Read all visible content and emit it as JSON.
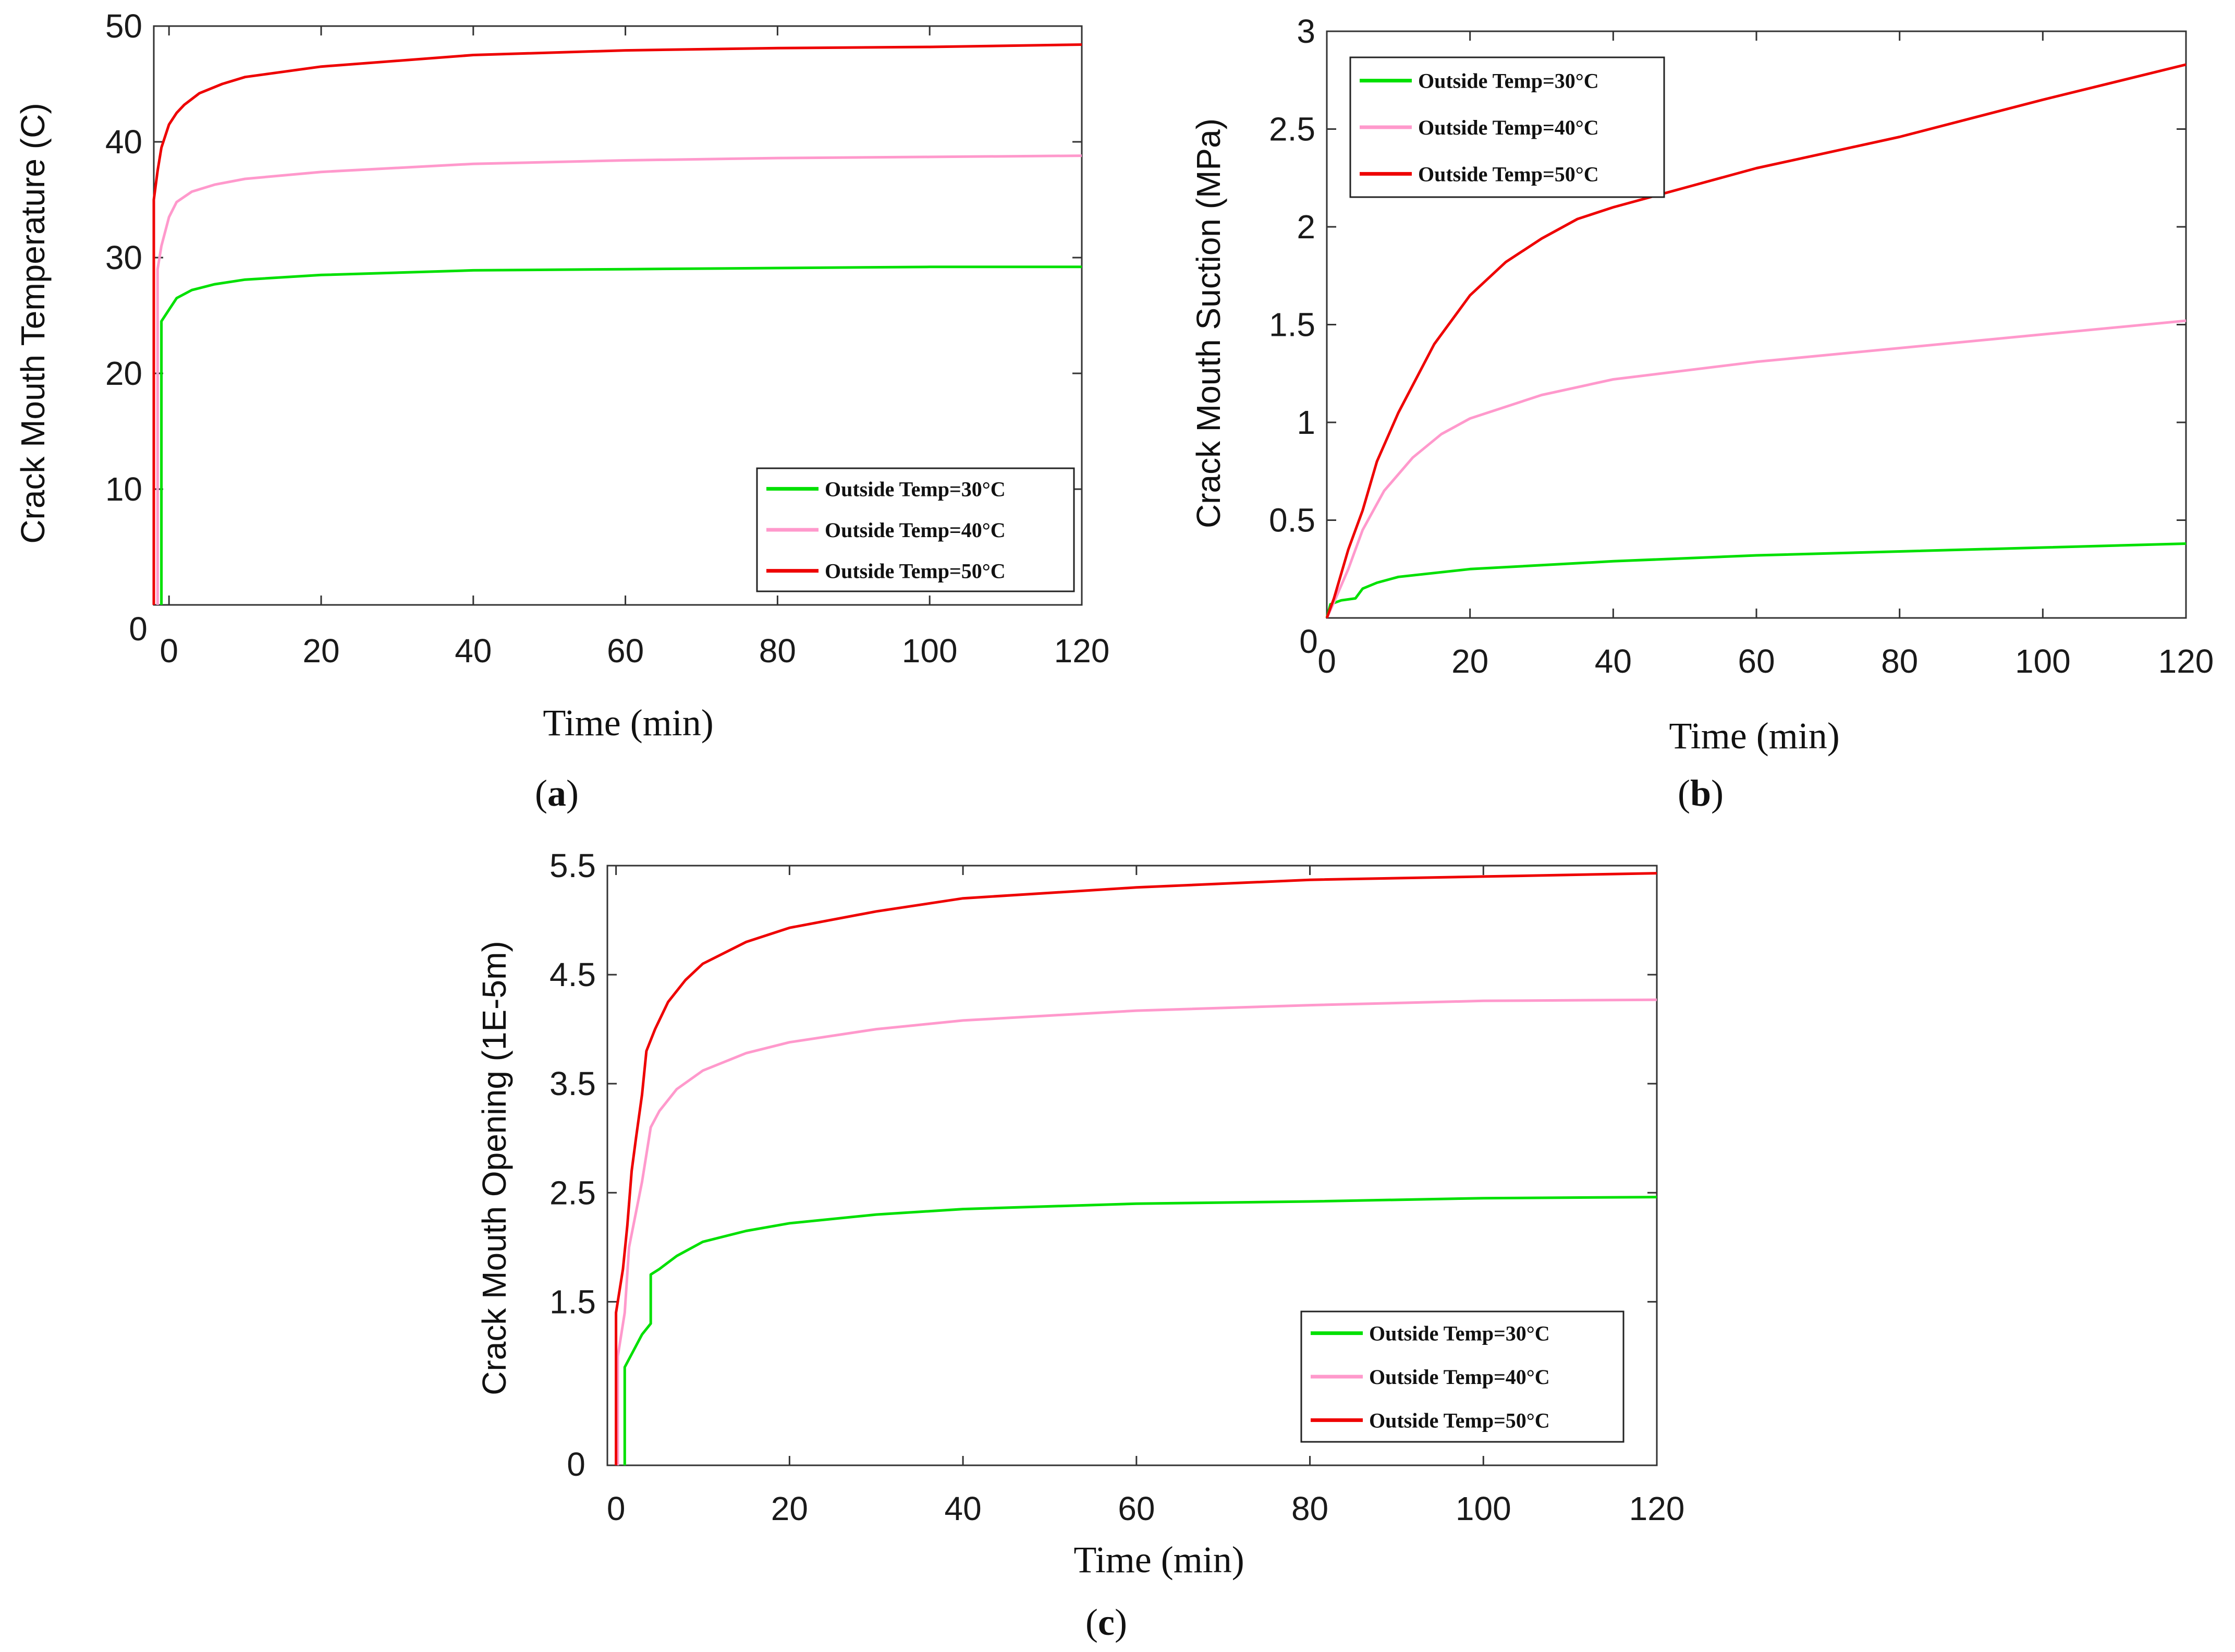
{
  "chart_data": [
    {
      "id": "a",
      "type": "line",
      "caption_letter": "a",
      "xlabel": "Time (min)",
      "ylabel": "Crack Mouth Temperature (C)",
      "xlim": [
        -2,
        120
      ],
      "ylim": [
        0,
        50
      ],
      "xticks": [
        0,
        20,
        40,
        60,
        80,
        100,
        120
      ],
      "yticks": [
        10,
        20,
        30,
        40,
        50
      ],
      "zero_label": "0",
      "legend_position": "lower-right",
      "series": [
        {
          "name": "Outside Temp=30",
          "color": "#00e000",
          "points": [
            [
              -1,
              0
            ],
            [
              -1,
              24.5
            ],
            [
              0,
              25.5
            ],
            [
              1,
              26.5
            ],
            [
              3,
              27.2
            ],
            [
              6,
              27.7
            ],
            [
              10,
              28.1
            ],
            [
              20,
              28.5
            ],
            [
              40,
              28.9
            ],
            [
              60,
              29.0
            ],
            [
              80,
              29.1
            ],
            [
              100,
              29.2
            ],
            [
              120,
              29.2
            ]
          ]
        },
        {
          "name": "Outside Temp=40",
          "color": "#ff99cc",
          "points": [
            [
              -1.5,
              0
            ],
            [
              -1.5,
              29
            ],
            [
              -1,
              31
            ],
            [
              0,
              33.5
            ],
            [
              1,
              34.8
            ],
            [
              3,
              35.7
            ],
            [
              6,
              36.3
            ],
            [
              10,
              36.8
            ],
            [
              20,
              37.4
            ],
            [
              40,
              38.1
            ],
            [
              60,
              38.4
            ],
            [
              80,
              38.6
            ],
            [
              100,
              38.7
            ],
            [
              120,
              38.8
            ]
          ]
        },
        {
          "name": "Outside Temp=50",
          "color": "#ee0000",
          "points": [
            [
              -2,
              0
            ],
            [
              -2,
              35
            ],
            [
              -1.5,
              37.5
            ],
            [
              -1,
              39.5
            ],
            [
              0,
              41.5
            ],
            [
              1,
              42.5
            ],
            [
              2,
              43.2
            ],
            [
              4,
              44.2
            ],
            [
              7,
              45.0
            ],
            [
              10,
              45.6
            ],
            [
              20,
              46.5
            ],
            [
              40,
              47.5
            ],
            [
              60,
              47.9
            ],
            [
              80,
              48.1
            ],
            [
              100,
              48.2
            ],
            [
              120,
              48.4
            ]
          ]
        }
      ],
      "legend": [
        "Outside Temp=30",
        "Outside Temp=40",
        "Outside Temp=50"
      ]
    },
    {
      "id": "b",
      "type": "line",
      "caption_letter": "b",
      "xlabel": "Time (min)",
      "ylabel": "Crack Mouth Suction (MPa)",
      "xlim": [
        0,
        120
      ],
      "ylim": [
        0,
        3
      ],
      "xticks": [
        0,
        20,
        40,
        60,
        80,
        100,
        120
      ],
      "yticks": [
        0.5,
        1,
        1.5,
        2,
        2.5,
        3
      ],
      "zero_label": "0",
      "legend_position": "top-left",
      "series": [
        {
          "name": "Outside Temp=30",
          "color": "#00e000",
          "points": [
            [
              0,
              0
            ],
            [
              0.5,
              0.07
            ],
            [
              2,
              0.09
            ],
            [
              4,
              0.1
            ],
            [
              5,
              0.15
            ],
            [
              7,
              0.18
            ],
            [
              10,
              0.21
            ],
            [
              20,
              0.25
            ],
            [
              40,
              0.29
            ],
            [
              60,
              0.32
            ],
            [
              80,
              0.34
            ],
            [
              100,
              0.36
            ],
            [
              120,
              0.38
            ]
          ]
        },
        {
          "name": "Outside Temp=40",
          "color": "#ff99cc",
          "points": [
            [
              0,
              0
            ],
            [
              1,
              0.08
            ],
            [
              3,
              0.25
            ],
            [
              5,
              0.45
            ],
            [
              8,
              0.65
            ],
            [
              12,
              0.82
            ],
            [
              16,
              0.94
            ],
            [
              20,
              1.02
            ],
            [
              30,
              1.14
            ],
            [
              40,
              1.22
            ],
            [
              60,
              1.31
            ],
            [
              80,
              1.38
            ],
            [
              100,
              1.45
            ],
            [
              120,
              1.52
            ]
          ]
        },
        {
          "name": "Outside Temp=50",
          "color": "#ee0000",
          "points": [
            [
              0,
              0
            ],
            [
              1,
              0.1
            ],
            [
              3,
              0.35
            ],
            [
              5,
              0.55
            ],
            [
              7,
              0.8
            ],
            [
              10,
              1.05
            ],
            [
              15,
              1.4
            ],
            [
              20,
              1.65
            ],
            [
              25,
              1.82
            ],
            [
              30,
              1.94
            ],
            [
              35,
              2.04
            ],
            [
              40,
              2.1
            ],
            [
              50,
              2.2
            ],
            [
              60,
              2.3
            ],
            [
              80,
              2.46
            ],
            [
              100,
              2.65
            ],
            [
              120,
              2.83
            ]
          ]
        }
      ],
      "legend": [
        "Outside Temp=30",
        "Outside Temp=40",
        "Outside Temp=50"
      ]
    },
    {
      "id": "c",
      "type": "line",
      "caption_letter": "c",
      "xlabel": "Time (min)",
      "ylabel": "Crack Mouth Opening (1E-5m)",
      "xlim": [
        -1,
        120
      ],
      "ylim": [
        0,
        5.5
      ],
      "xticks": [
        0,
        20,
        40,
        60,
        80,
        100,
        120
      ],
      "yticks": [
        1.5,
        2.5,
        3.5,
        4.5,
        5.5
      ],
      "zero_label": "0",
      "legend_position": "lower-right",
      "series": [
        {
          "name": "Outside Temp=30",
          "color": "#00e000",
          "points": [
            [
              1,
              0
            ],
            [
              1,
              0.9
            ],
            [
              2,
              1.05
            ],
            [
              3,
              1.2
            ],
            [
              4,
              1.3
            ],
            [
              4,
              1.75
            ],
            [
              5,
              1.8
            ],
            [
              7,
              1.92
            ],
            [
              10,
              2.05
            ],
            [
              15,
              2.15
            ],
            [
              20,
              2.22
            ],
            [
              30,
              2.3
            ],
            [
              40,
              2.35
            ],
            [
              60,
              2.4
            ],
            [
              80,
              2.42
            ],
            [
              100,
              2.45
            ],
            [
              120,
              2.46
            ]
          ]
        },
        {
          "name": "Outside Temp=40",
          "color": "#ff99cc",
          "points": [
            [
              0.2,
              0
            ],
            [
              0.2,
              1.0
            ],
            [
              1,
              1.4
            ],
            [
              1.5,
              2.0
            ],
            [
              2,
              2.2
            ],
            [
              3,
              2.6
            ],
            [
              4,
              3.1
            ],
            [
              5,
              3.25
            ],
            [
              7,
              3.45
            ],
            [
              10,
              3.62
            ],
            [
              15,
              3.78
            ],
            [
              20,
              3.88
            ],
            [
              30,
              4.0
            ],
            [
              40,
              4.08
            ],
            [
              60,
              4.17
            ],
            [
              80,
              4.22
            ],
            [
              100,
              4.26
            ],
            [
              120,
              4.27
            ]
          ]
        },
        {
          "name": "Outside Temp=50",
          "color": "#ee0000",
          "points": [
            [
              0,
              0
            ],
            [
              0,
              1.4
            ],
            [
              0.8,
              1.8
            ],
            [
              1.3,
              2.2
            ],
            [
              1.8,
              2.7
            ],
            [
              2.3,
              3.0
            ],
            [
              3,
              3.4
            ],
            [
              3.5,
              3.8
            ],
            [
              4.5,
              4.0
            ],
            [
              6,
              4.25
            ],
            [
              8,
              4.45
            ],
            [
              10,
              4.6
            ],
            [
              15,
              4.8
            ],
            [
              20,
              4.93
            ],
            [
              30,
              5.08
            ],
            [
              40,
              5.2
            ],
            [
              60,
              5.3
            ],
            [
              80,
              5.37
            ],
            [
              100,
              5.4
            ],
            [
              120,
              5.43
            ]
          ]
        }
      ],
      "legend": [
        "Outside Temp=30",
        "Outside Temp=40",
        "Outside Temp=50"
      ]
    }
  ]
}
